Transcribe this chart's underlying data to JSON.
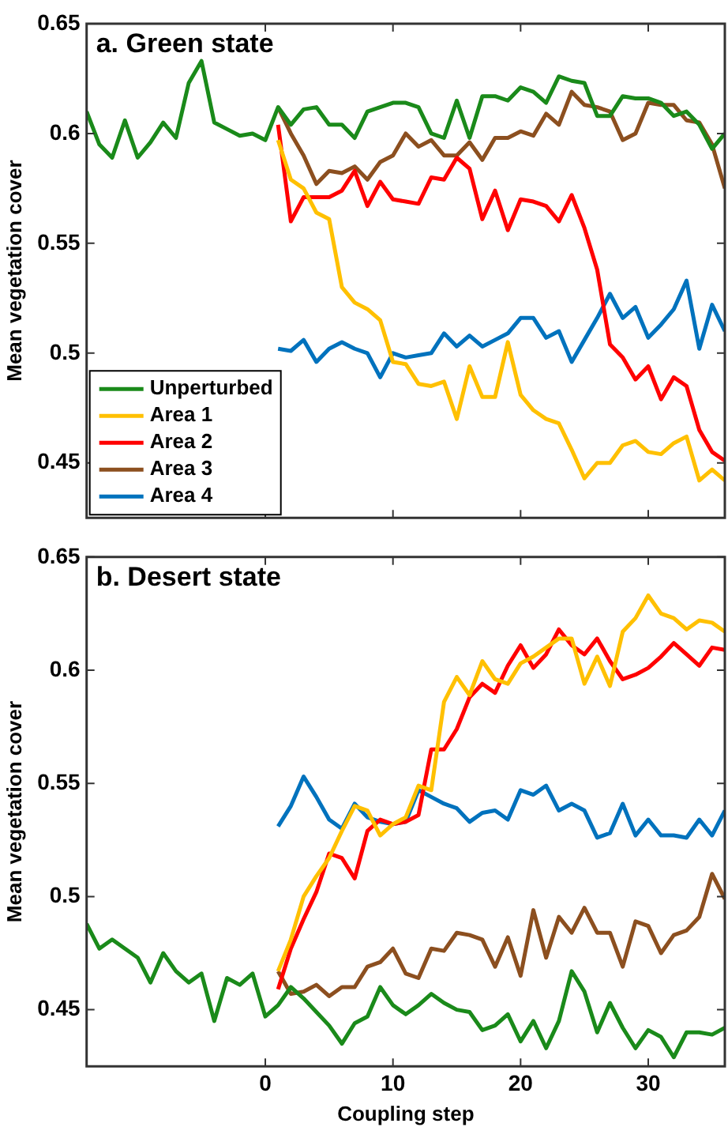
{
  "chart_data": [
    {
      "type": "line",
      "title": "a. Green state",
      "ylabel": "Mean vegetation cover",
      "xlim": [
        -14,
        36
      ],
      "ylim": [
        0.425,
        0.65
      ],
      "xticks": [
        0,
        10,
        20,
        30
      ],
      "yticks": [
        0.45,
        0.5,
        0.55,
        0.6,
        0.65
      ],
      "tick_labels": "y",
      "legend": "bottom left",
      "series": [
        {
          "name": "Unperturbed",
          "color": "#1a8a1a",
          "x": [
            -14,
            -13,
            -12,
            -11,
            -10,
            -9,
            -8,
            -7,
            -6,
            -5,
            -4,
            -3,
            -2,
            -1,
            0,
            1,
            2,
            3,
            4,
            5,
            6,
            7,
            8,
            9,
            10,
            11,
            12,
            13,
            14,
            15,
            16,
            17,
            18,
            19,
            20,
            21,
            22,
            23,
            24,
            25,
            26,
            27,
            28,
            29,
            30,
            31,
            32,
            33,
            34,
            35,
            36
          ],
          "values": [
            0.61,
            0.595,
            0.589,
            0.606,
            0.589,
            0.596,
            0.605,
            0.598,
            0.623,
            0.633,
            0.605,
            0.602,
            0.599,
            0.6,
            0.597,
            0.612,
            0.604,
            0.611,
            0.612,
            0.604,
            0.604,
            0.598,
            0.61,
            0.612,
            0.614,
            0.614,
            0.612,
            0.6,
            0.598,
            0.615,
            0.598,
            0.617,
            0.617,
            0.615,
            0.621,
            0.619,
            0.614,
            0.626,
            0.624,
            0.623,
            0.608,
            0.608,
            0.617,
            0.616,
            0.616,
            0.614,
            0.608,
            0.61,
            0.604,
            0.593,
            0.6
          ]
        },
        {
          "name": "Area 1",
          "color": "#ffc000",
          "x": [
            1,
            2,
            3,
            4,
            5,
            6,
            7,
            8,
            9,
            10,
            11,
            12,
            13,
            14,
            15,
            16,
            17,
            18,
            19,
            20,
            21,
            22,
            23,
            24,
            25,
            26,
            27,
            28,
            29,
            30,
            31,
            32,
            33,
            34,
            35,
            36
          ],
          "values": [
            0.597,
            0.579,
            0.575,
            0.564,
            0.561,
            0.53,
            0.523,
            0.52,
            0.515,
            0.496,
            0.495,
            0.486,
            0.485,
            0.487,
            0.47,
            0.494,
            0.48,
            0.48,
            0.505,
            0.481,
            0.474,
            0.47,
            0.468,
            0.456,
            0.443,
            0.45,
            0.45,
            0.458,
            0.46,
            0.455,
            0.454,
            0.459,
            0.462,
            0.442,
            0.447,
            0.442
          ]
        },
        {
          "name": "Area 2",
          "color": "#ff0000",
          "x": [
            1,
            2,
            3,
            4,
            5,
            6,
            7,
            8,
            9,
            10,
            11,
            12,
            13,
            14,
            15,
            16,
            17,
            18,
            19,
            20,
            21,
            22,
            23,
            24,
            25,
            26,
            27,
            28,
            29,
            30,
            31,
            32,
            33,
            34,
            35,
            36
          ],
          "values": [
            0.604,
            0.56,
            0.571,
            0.571,
            0.571,
            0.574,
            0.583,
            0.567,
            0.578,
            0.57,
            0.569,
            0.568,
            0.58,
            0.579,
            0.589,
            0.584,
            0.561,
            0.574,
            0.556,
            0.57,
            0.569,
            0.567,
            0.56,
            0.572,
            0.557,
            0.538,
            0.504,
            0.498,
            0.488,
            0.494,
            0.479,
            0.489,
            0.485,
            0.465,
            0.455,
            0.451
          ]
        },
        {
          "name": "Area 3",
          "color": "#8c4f1f",
          "x": [
            1,
            2,
            3,
            4,
            5,
            6,
            7,
            8,
            9,
            10,
            11,
            12,
            13,
            14,
            15,
            16,
            17,
            18,
            19,
            20,
            21,
            22,
            23,
            24,
            25,
            26,
            27,
            28,
            29,
            30,
            31,
            32,
            33,
            34,
            35,
            36
          ],
          "values": [
            0.612,
            0.6,
            0.59,
            0.577,
            0.583,
            0.582,
            0.585,
            0.579,
            0.587,
            0.59,
            0.6,
            0.594,
            0.597,
            0.59,
            0.59,
            0.596,
            0.588,
            0.598,
            0.598,
            0.601,
            0.599,
            0.609,
            0.604,
            0.619,
            0.613,
            0.612,
            0.61,
            0.597,
            0.6,
            0.614,
            0.613,
            0.613,
            0.606,
            0.605,
            0.595,
            0.575
          ]
        },
        {
          "name": "Area 4",
          "color": "#0072bd",
          "x": [
            1,
            2,
            3,
            4,
            5,
            6,
            7,
            8,
            9,
            10,
            11,
            12,
            13,
            14,
            15,
            16,
            17,
            18,
            19,
            20,
            21,
            22,
            23,
            24,
            25,
            26,
            27,
            28,
            29,
            30,
            31,
            32,
            33,
            34,
            35,
            36
          ],
          "values": [
            0.502,
            0.501,
            0.506,
            0.496,
            0.502,
            0.505,
            0.502,
            0.5,
            0.489,
            0.5,
            0.498,
            0.499,
            0.5,
            0.509,
            0.503,
            0.508,
            0.503,
            0.506,
            0.509,
            0.516,
            0.516,
            0.507,
            0.51,
            0.496,
            0.506,
            0.516,
            0.527,
            0.516,
            0.521,
            0.507,
            0.513,
            0.52,
            0.533,
            0.502,
            0.522,
            0.51
          ]
        }
      ]
    },
    {
      "type": "line",
      "title": "b. Desert state",
      "xlabel": "Coupling step",
      "ylabel": "Mean vegetation cover",
      "xlim": [
        -14,
        36
      ],
      "ylim": [
        0.425,
        0.65
      ],
      "xticks": [
        0,
        10,
        20,
        30
      ],
      "yticks": [
        0.45,
        0.5,
        0.55,
        0.6,
        0.65
      ],
      "series": [
        {
          "color": "#1a8a1a",
          "x": [
            -14,
            -13,
            -12,
            -11,
            -10,
            -9,
            -8,
            -7,
            -6,
            -5,
            -4,
            -3,
            -2,
            -1,
            0,
            1,
            2,
            3,
            4,
            5,
            6,
            7,
            8,
            9,
            10,
            11,
            12,
            13,
            14,
            15,
            16,
            17,
            18,
            19,
            20,
            21,
            22,
            23,
            24,
            25,
            26,
            27,
            28,
            29,
            30,
            31,
            32,
            33,
            34,
            35,
            36
          ],
          "values": [
            0.488,
            0.477,
            0.481,
            0.477,
            0.473,
            0.462,
            0.475,
            0.467,
            0.462,
            0.466,
            0.445,
            0.464,
            0.461,
            0.466,
            0.447,
            0.452,
            0.46,
            0.455,
            0.449,
            0.443,
            0.435,
            0.444,
            0.447,
            0.46,
            0.452,
            0.448,
            0.452,
            0.457,
            0.453,
            0.45,
            0.449,
            0.441,
            0.443,
            0.448,
            0.436,
            0.445,
            0.433,
            0.445,
            0.467,
            0.458,
            0.44,
            0.453,
            0.442,
            0.433,
            0.441,
            0.438,
            0.429,
            0.44,
            0.44,
            0.439,
            0.442
          ]
        },
        {
          "color": "#ffc000",
          "x": [
            1,
            2,
            3,
            4,
            5,
            6,
            7,
            8,
            9,
            10,
            11,
            12,
            13,
            14,
            15,
            16,
            17,
            18,
            19,
            20,
            21,
            22,
            23,
            24,
            25,
            26,
            27,
            28,
            29,
            30,
            31,
            32,
            33,
            34,
            35,
            36
          ],
          "values": [
            0.467,
            0.481,
            0.5,
            0.509,
            0.517,
            0.529,
            0.54,
            0.538,
            0.527,
            0.532,
            0.535,
            0.549,
            0.547,
            0.586,
            0.597,
            0.589,
            0.604,
            0.596,
            0.594,
            0.603,
            0.606,
            0.61,
            0.614,
            0.614,
            0.594,
            0.606,
            0.593,
            0.617,
            0.623,
            0.633,
            0.625,
            0.623,
            0.618,
            0.622,
            0.621,
            0.617
          ]
        },
        {
          "color": "#ff0000",
          "x": [
            1,
            2,
            3,
            4,
            5,
            6,
            7,
            8,
            9,
            10,
            11,
            12,
            13,
            14,
            15,
            16,
            17,
            18,
            19,
            20,
            21,
            22,
            23,
            24,
            25,
            26,
            27,
            28,
            29,
            30,
            31,
            32,
            33,
            34,
            35,
            36
          ],
          "values": [
            0.459,
            0.477,
            0.49,
            0.502,
            0.519,
            0.517,
            0.508,
            0.529,
            0.534,
            0.532,
            0.533,
            0.536,
            0.565,
            0.565,
            0.574,
            0.588,
            0.594,
            0.59,
            0.602,
            0.611,
            0.601,
            0.607,
            0.618,
            0.611,
            0.607,
            0.614,
            0.604,
            0.596,
            0.598,
            0.601,
            0.606,
            0.612,
            0.607,
            0.602,
            0.61,
            0.609
          ]
        },
        {
          "color": "#8c4f1f",
          "x": [
            1,
            2,
            3,
            4,
            5,
            6,
            7,
            8,
            9,
            10,
            11,
            12,
            13,
            14,
            15,
            16,
            17,
            18,
            19,
            20,
            21,
            22,
            23,
            24,
            25,
            26,
            27,
            28,
            29,
            30,
            31,
            32,
            33,
            34,
            35,
            36
          ],
          "values": [
            0.467,
            0.457,
            0.458,
            0.461,
            0.456,
            0.46,
            0.46,
            0.469,
            0.471,
            0.477,
            0.466,
            0.464,
            0.477,
            0.476,
            0.484,
            0.483,
            0.481,
            0.469,
            0.482,
            0.465,
            0.494,
            0.473,
            0.491,
            0.484,
            0.495,
            0.484,
            0.484,
            0.469,
            0.489,
            0.487,
            0.475,
            0.483,
            0.485,
            0.491,
            0.51,
            0.499
          ]
        },
        {
          "color": "#0072bd",
          "x": [
            1,
            2,
            3,
            4,
            5,
            6,
            7,
            8,
            9,
            10,
            11,
            12,
            13,
            14,
            15,
            16,
            17,
            18,
            19,
            20,
            21,
            22,
            23,
            24,
            25,
            26,
            27,
            28,
            29,
            30,
            31,
            32,
            33,
            34,
            35,
            36
          ],
          "values": [
            0.531,
            0.54,
            0.553,
            0.544,
            0.534,
            0.53,
            0.541,
            0.535,
            0.533,
            0.532,
            0.533,
            0.547,
            0.544,
            0.541,
            0.539,
            0.533,
            0.537,
            0.538,
            0.534,
            0.547,
            0.545,
            0.549,
            0.538,
            0.541,
            0.538,
            0.526,
            0.528,
            0.541,
            0.527,
            0.534,
            0.527,
            0.527,
            0.526,
            0.534,
            0.527,
            0.538
          ]
        }
      ]
    }
  ]
}
